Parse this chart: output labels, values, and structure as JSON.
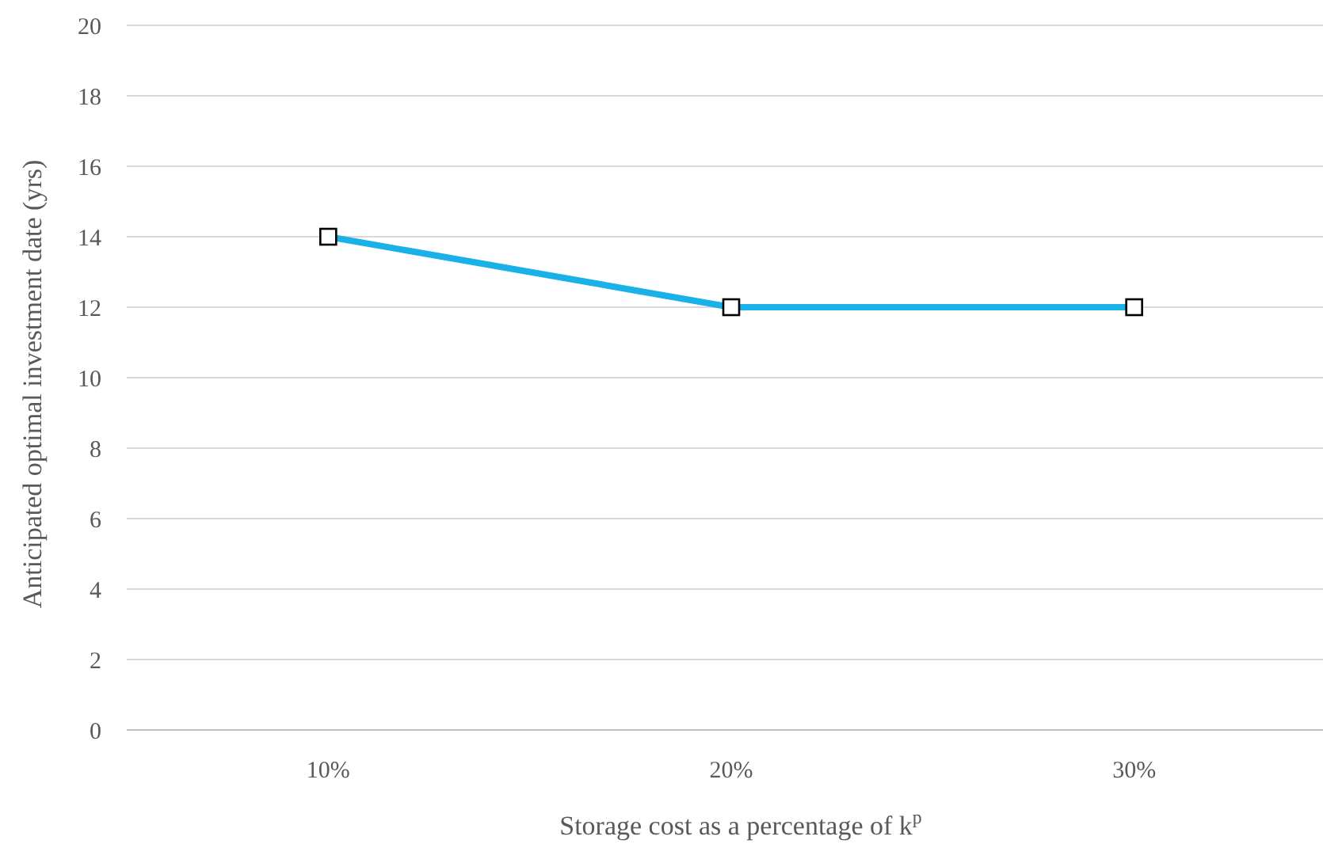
{
  "chart_data": {
    "type": "line",
    "xlabel": "Storage cost as a percentage of k$^{p}$",
    "ylabel": "Anticipated optimal investment date (yrs)",
    "categories": [
      "10%",
      "20%",
      "30%"
    ],
    "series": [
      {
        "color": "#1ab0e8",
        "values": [
          14,
          12,
          12
        ]
      }
    ],
    "ylim": [
      0,
      20
    ],
    "yticks": [
      0,
      2,
      4,
      6,
      8,
      10,
      12,
      14,
      16,
      18,
      20
    ],
    "grid": "y",
    "marker": "square",
    "line_style": "solid"
  }
}
